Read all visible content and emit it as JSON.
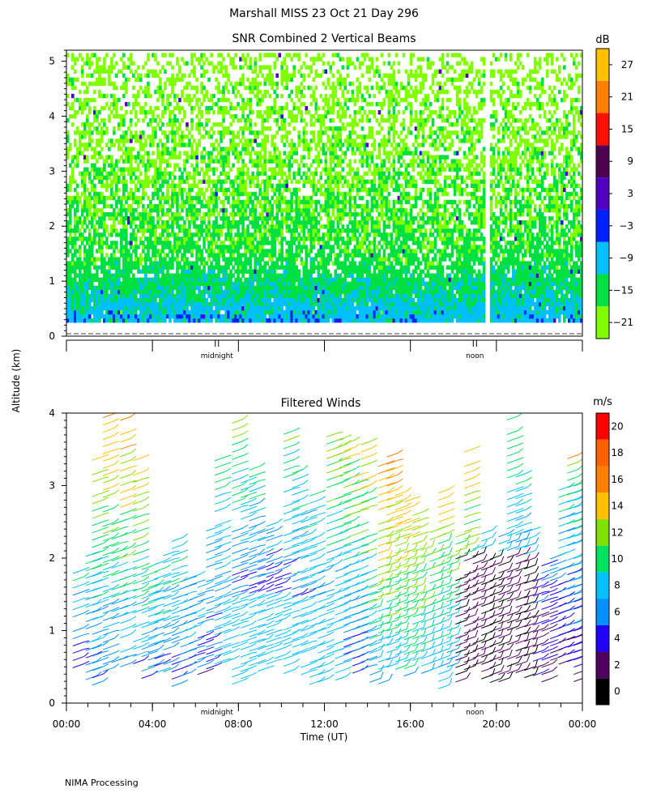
{
  "header": {
    "title": "Marshall MISS   23 Oct 21 Day 296"
  },
  "footer": {
    "processing": "NIMA Processing"
  },
  "chart_data": [
    {
      "type": "heatmap",
      "title": "SNR Combined 2 Vertical Beams",
      "ylabel": "Altitude (km)",
      "ylim": [
        0,
        5.2
      ],
      "yticks": [
        "0",
        "1",
        "2",
        "3",
        "4",
        "5"
      ],
      "ytick_values": [
        0,
        1,
        2,
        3,
        4,
        5
      ],
      "xlim_hours": [
        0,
        24
      ],
      "x_annotations": [
        {
          "label": "midnight",
          "hour": 7
        },
        {
          "label": "noon",
          "hour": 19
        }
      ],
      "colorbar": {
        "unit": "dB",
        "tick_labels": [
          "27",
          "21",
          "15",
          "9",
          "3",
          "−3",
          "−9",
          "−15",
          "−21"
        ],
        "tick_values": [
          27,
          21,
          15,
          9,
          3,
          -3,
          -9,
          -15,
          -21
        ],
        "bins": [
          {
            "from": -24,
            "to": -18,
            "color": "#80ff00"
          },
          {
            "from": -18,
            "to": -12,
            "color": "#00e040"
          },
          {
            "from": -12,
            "to": -6,
            "color": "#00c0ff"
          },
          {
            "from": -6,
            "to": 0,
            "color": "#0020ff"
          },
          {
            "from": 0,
            "to": 6,
            "color": "#5000c0"
          },
          {
            "from": 6,
            "to": 12,
            "color": "#500050"
          },
          {
            "from": 12,
            "to": 18,
            "color": "#ff1000"
          },
          {
            "from": 18,
            "to": 24,
            "color": "#ff8000"
          },
          {
            "from": 24,
            "to": 30,
            "color": "#ffc000"
          }
        ]
      },
      "data_profile": {
        "min_altitude_km": 0.25,
        "max_altitude_km": 5.15,
        "gap_hour": 19.5,
        "snr_by_altitude": [
          {
            "alt": 0.3,
            "snr": -8
          },
          {
            "alt": 0.8,
            "snr": -13
          },
          {
            "alt": 1.5,
            "snr": -16
          },
          {
            "alt": 2.5,
            "snr": -18
          },
          {
            "alt": 3.5,
            "snr": -20
          },
          {
            "alt": 5.0,
            "snr": -21
          }
        ]
      }
    },
    {
      "type": "scatter",
      "title": "Filtered Winds",
      "xlabel": "Time (UT)",
      "ylim": [
        0,
        4
      ],
      "yticks": [
        "0",
        "1",
        "2",
        "3",
        "4"
      ],
      "ytick_values": [
        0,
        1,
        2,
        3,
        4
      ],
      "xlim_hours": [
        0,
        24
      ],
      "xticks": [
        "00:00",
        "04:00",
        "08:00",
        "12:00",
        "16:00",
        "20:00",
        "00:00"
      ],
      "xtick_hours": [
        0,
        4,
        8,
        12,
        16,
        20,
        24
      ],
      "x_annotations": [
        {
          "label": "midnight",
          "hour": 7
        },
        {
          "label": "noon",
          "hour": 19
        }
      ],
      "colorbar": {
        "unit": "m/s",
        "tick_labels": [
          "20",
          "18",
          "16",
          "14",
          "12",
          "10",
          "8",
          "6",
          "4",
          "2",
          "0"
        ],
        "tick_values": [
          20,
          18,
          16,
          14,
          12,
          10,
          8,
          6,
          4,
          2,
          0
        ],
        "bins": [
          {
            "from": 0,
            "to": 2,
            "color": "#000000"
          },
          {
            "from": 2,
            "to": 4,
            "color": "#500060"
          },
          {
            "from": 4,
            "to": 6,
            "color": "#2000ff"
          },
          {
            "from": 6,
            "to": 8,
            "color": "#0090ff"
          },
          {
            "from": 8,
            "to": 10,
            "color": "#00c0ff"
          },
          {
            "from": 10,
            "to": 12,
            "color": "#00e060"
          },
          {
            "from": 12,
            "to": 14,
            "color": "#80e000"
          },
          {
            "from": 14,
            "to": 16,
            "color": "#ffc000"
          },
          {
            "from": 16,
            "to": 18,
            "color": "#ff8000"
          },
          {
            "from": 18,
            "to": 20,
            "color": "#ff6000"
          },
          {
            "from": 20,
            "to": 22,
            "color": "#ff0000"
          }
        ]
      },
      "wind_columns_hours": [
        0.6,
        1.2,
        1.5,
        2.0,
        2.4,
        2.8,
        3.4,
        3.8,
        4.1,
        4.4,
        4.8,
        5.2,
        5.6,
        6.0,
        6.4,
        6.8,
        7.2,
        7.6,
        8.0,
        8.4,
        8.8,
        9.2,
        9.6,
        10.0,
        10.4,
        10.8,
        11.2,
        11.6,
        12.0,
        12.4,
        12.8,
        13.2,
        13.6,
        14.0,
        14.4,
        14.8,
        15.2,
        15.6,
        16.0,
        16.4,
        16.8,
        17.2,
        17.6,
        18.0,
        18.4,
        18.8,
        19.2,
        19.6,
        20.0,
        20.4,
        20.8,
        21.2,
        21.6,
        22.0,
        22.4,
        22.8,
        23.2,
        23.6,
        23.9
      ]
    }
  ]
}
